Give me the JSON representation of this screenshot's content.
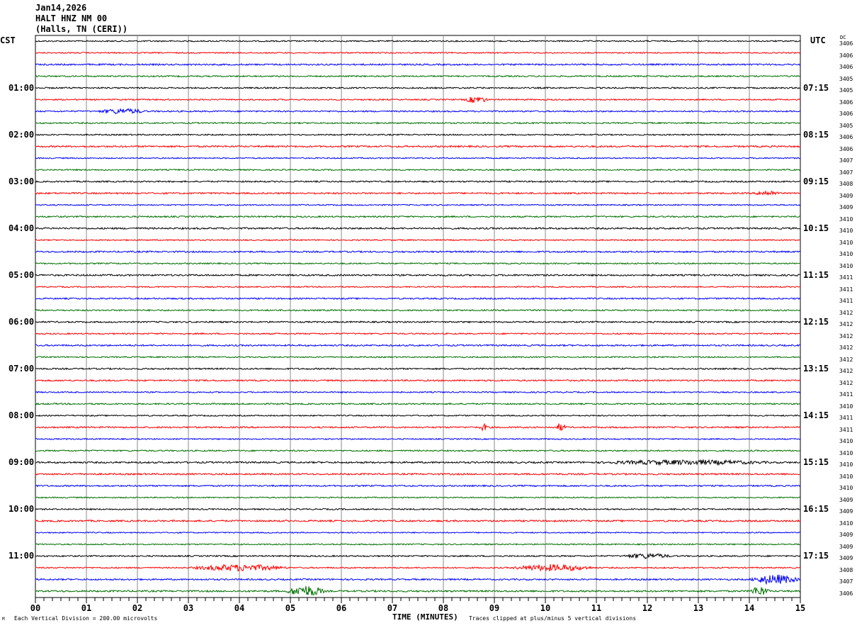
{
  "header": {
    "date": "Jan14,2026",
    "station": "HALT HNZ NM 00",
    "location": "(Halls, TN (CERI))"
  },
  "left_tz": "CST",
  "right_tz": "UTC",
  "dc_header": "DC",
  "footer": {
    "scale": "Each Vertical Division =  200.00 microvolts",
    "xlabel": "TIME (MINUTES)",
    "clip_note": "Traces clipped at plus/minus 5 vertical divisions",
    "corner_mark": "M"
  },
  "chart_data": {
    "type": "line",
    "title": "HALT HNZ NM 00 (Halls, TN (CERI)) Jan14,2026",
    "xlabel": "TIME (MINUTES)",
    "xlim": [
      0,
      15
    ],
    "x_ticks": [
      "00",
      "01",
      "02",
      "03",
      "04",
      "05",
      "06",
      "07",
      "08",
      "09",
      "10",
      "11",
      "12",
      "13",
      "14",
      "15"
    ],
    "minutes_per_line": 15,
    "colors": [
      "#000000",
      "#ff0000",
      "#0000ff",
      "#007000"
    ],
    "left_labels": [
      "",
      "01:00",
      "02:00",
      "03:00",
      "04:00",
      "05:00",
      "06:00",
      "07:00",
      "08:00",
      "09:00",
      "10:00",
      "11:00"
    ],
    "right_labels": [
      "",
      "07:15",
      "08:15",
      "09:15",
      "10:15",
      "11:15",
      "12:15",
      "13:15",
      "14:15",
      "15:15",
      "16:15",
      "17:15"
    ],
    "dc_offsets": [
      "3406",
      "3406",
      "3406",
      "3405",
      "3405",
      "3406",
      "3406",
      "3405",
      "3406",
      "3406",
      "3407",
      "3407",
      "3408",
      "3409",
      "3409",
      "3410",
      "3410",
      "3410",
      "3410",
      "3410",
      "3411",
      "3411",
      "3411",
      "3412",
      "3412",
      "3412",
      "3412",
      "3412",
      "3412",
      "3412",
      "3411",
      "3410",
      "3411",
      "3411",
      "3410",
      "3410",
      "3410",
      "3410",
      "3410",
      "3409",
      "3409",
      "3410",
      "3409",
      "3409",
      "3409",
      "3408",
      "3407",
      "3406"
    ],
    "events": [
      {
        "line": 5,
        "start": 8.4,
        "end": 8.9,
        "amp": 4
      },
      {
        "line": 6,
        "start": 1.2,
        "end": 2.2,
        "amp": 3
      },
      {
        "line": 13,
        "start": 14.1,
        "end": 14.6,
        "amp": 3
      },
      {
        "line": 33,
        "start": 8.7,
        "end": 8.9,
        "amp": 4
      },
      {
        "line": 33,
        "start": 10.2,
        "end": 10.4,
        "amp": 5
      },
      {
        "line": 36,
        "start": 11,
        "end": 14.5,
        "amp": 2.5
      },
      {
        "line": 44,
        "start": 11.5,
        "end": 12.5,
        "amp": 3
      },
      {
        "line": 45,
        "start": 3,
        "end": 5,
        "amp": 4
      },
      {
        "line": 45,
        "start": 9.3,
        "end": 11,
        "amp": 4
      },
      {
        "line": 46,
        "start": 14,
        "end": 15,
        "amp": 6
      },
      {
        "line": 47,
        "start": 4.9,
        "end": 5.7,
        "amp": 7
      },
      {
        "line": 47,
        "start": 14,
        "end": 14.4,
        "amp": 6
      }
    ]
  }
}
